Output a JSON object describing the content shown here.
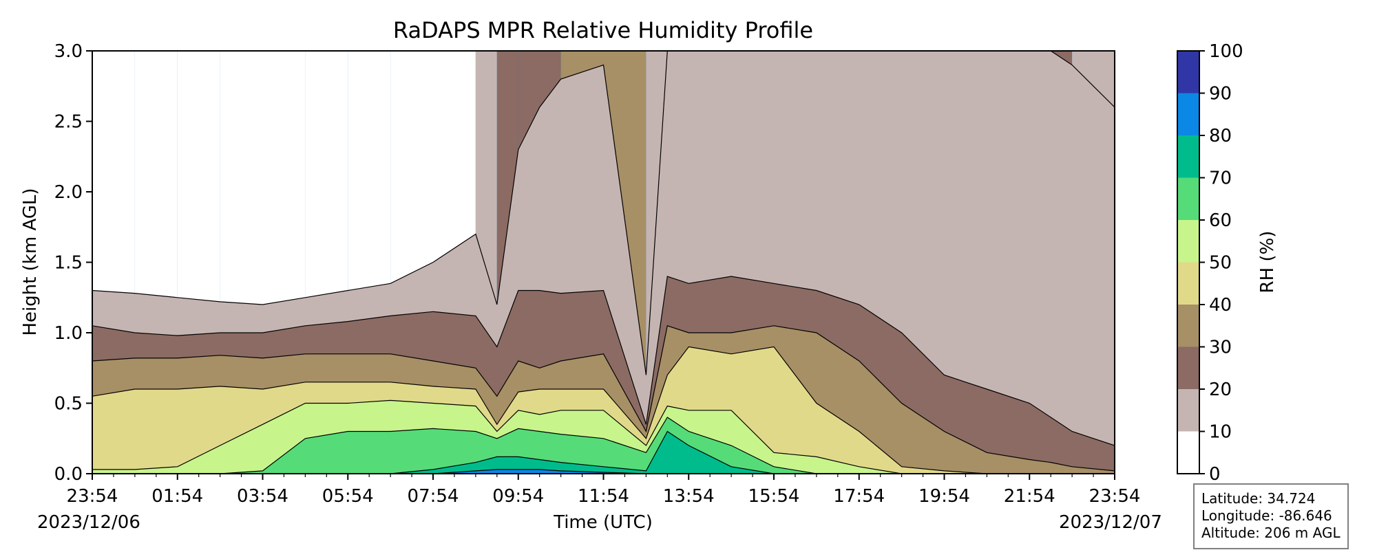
{
  "chart_data": {
    "type": "heatmap",
    "subtype": "filled-contour",
    "title": "RaDAPS MPR Relative Humidity Profile",
    "xlabel": "Time (UTC)",
    "ylabel": "Height (km AGL)",
    "x_ticks": [
      "23:54",
      "01:54",
      "03:54",
      "05:54",
      "07:54",
      "09:54",
      "11:54",
      "13:54",
      "15:54",
      "17:54",
      "19:54",
      "21:54",
      "23:54"
    ],
    "x_range": [
      "2023-12-06T23:54",
      "2023-12-07T23:54"
    ],
    "date_labels": {
      "start": "2023/12/06",
      "end": "2023/12/07"
    },
    "y_ticks": [
      0.0,
      0.5,
      1.0,
      1.5,
      2.0,
      2.5,
      3.0
    ],
    "y_tick_labels": [
      "0.0",
      "0.5",
      "1.0",
      "1.5",
      "2.0",
      "2.5",
      "3.0"
    ],
    "ylim": [
      0,
      3.0
    ],
    "colorbar": {
      "label": "RH (%)",
      "ticks": [
        0,
        10,
        20,
        30,
        40,
        50,
        60,
        70,
        80,
        90,
        100
      ],
      "levels": [
        {
          "min": 0,
          "max": 10,
          "color": "#ffffff"
        },
        {
          "min": 10,
          "max": 20,
          "color": "#c5b5b2"
        },
        {
          "min": 20,
          "max": 30,
          "color": "#8b6b63"
        },
        {
          "min": 30,
          "max": 40,
          "color": "#a78f66"
        },
        {
          "min": 40,
          "max": 50,
          "color": "#e1d98a"
        },
        {
          "min": 50,
          "max": 60,
          "color": "#c8f48c"
        },
        {
          "min": 60,
          "max": 70,
          "color": "#55db78"
        },
        {
          "min": 70,
          "max": 80,
          "color": "#00bc8c"
        },
        {
          "min": 80,
          "max": 90,
          "color": "#0b87e5"
        },
        {
          "min": 90,
          "max": 100,
          "color": "#3136a6"
        }
      ]
    },
    "rh_profile": {
      "description_units": "Height of each RH contour boundary in km AGL at each time (hours since 23:54 UTC 2023/12/06)",
      "hours": [
        0,
        1,
        2,
        3,
        4,
        5,
        6,
        7,
        8,
        9,
        9.5,
        10,
        10.5,
        11,
        12,
        13,
        13.5,
        14,
        15,
        16,
        17,
        18,
        19,
        20,
        21,
        22,
        22.5,
        23,
        24
      ],
      "rh_thresholds": [
        80,
        70,
        60,
        50,
        40,
        30,
        20,
        10
      ],
      "boundaries_km": [
        [
          0,
          0,
          0,
          0,
          0,
          0,
          0,
          0,
          0,
          0.02,
          0.03,
          0.03,
          0.03,
          0.02,
          0.01,
          0,
          0,
          0,
          0,
          0,
          0,
          0,
          0,
          0,
          0,
          0,
          0,
          0,
          0
        ],
        [
          0,
          0,
          0,
          0,
          0,
          0,
          0,
          0,
          0.03,
          0.08,
          0.12,
          0.12,
          0.1,
          0.08,
          0.05,
          0.02,
          0.3,
          0.2,
          0.05,
          0,
          0,
          0,
          0,
          0,
          0,
          0,
          0,
          0,
          0
        ],
        [
          0,
          0,
          0,
          0,
          0.02,
          0.25,
          0.3,
          0.3,
          0.32,
          0.3,
          0.25,
          0.32,
          0.3,
          0.28,
          0.25,
          0.15,
          0.4,
          0.3,
          0.2,
          0.05,
          0,
          0,
          0,
          0,
          0,
          0,
          0,
          0,
          0
        ],
        [
          0.03,
          0.03,
          0.05,
          0.2,
          0.35,
          0.5,
          0.5,
          0.52,
          0.5,
          0.48,
          0.3,
          0.45,
          0.42,
          0.45,
          0.45,
          0.2,
          0.48,
          0.45,
          0.45,
          0.15,
          0.12,
          0.05,
          0,
          0,
          0,
          0,
          0,
          0,
          0
        ],
        [
          0.55,
          0.6,
          0.6,
          0.62,
          0.6,
          0.65,
          0.65,
          0.65,
          0.62,
          0.6,
          0.35,
          0.58,
          0.6,
          0.6,
          0.6,
          0.25,
          0.7,
          0.9,
          0.85,
          0.9,
          0.5,
          0.3,
          0.05,
          0.02,
          0,
          0,
          0,
          0,
          0
        ],
        [
          0.8,
          0.82,
          0.82,
          0.84,
          0.82,
          0.85,
          0.85,
          0.85,
          0.8,
          0.75,
          0.55,
          0.8,
          0.75,
          0.8,
          0.85,
          0.3,
          1.05,
          1.0,
          1.0,
          1.05,
          1.0,
          0.8,
          0.5,
          0.3,
          0.15,
          0.1,
          0.08,
          0.05,
          0.02
        ],
        [
          1.05,
          1.0,
          0.98,
          1.0,
          1.0,
          1.05,
          1.08,
          1.12,
          1.15,
          1.12,
          0.9,
          1.3,
          1.3,
          1.28,
          1.3,
          0.35,
          1.4,
          1.35,
          1.4,
          1.35,
          1.3,
          1.2,
          1.0,
          0.7,
          0.6,
          0.5,
          0.4,
          0.3,
          0.2
        ],
        [
          1.3,
          1.28,
          1.25,
          1.22,
          1.2,
          1.25,
          1.3,
          1.35,
          1.5,
          1.7,
          1.2,
          2.3,
          2.6,
          2.8,
          2.9,
          0.7,
          3.0,
          3.0,
          3.0,
          3.0,
          3.0,
          3.0,
          3.0,
          3.0,
          3.0,
          3.0,
          3.0,
          2.9,
          2.6
        ]
      ],
      "top_band_rh_percent": [
        5,
        5,
        5,
        5,
        5,
        5,
        5,
        5,
        5,
        15,
        25,
        25,
        28,
        30,
        30,
        15,
        25,
        15,
        15,
        15,
        15,
        25,
        25,
        25,
        28,
        30,
        25,
        15,
        15
      ]
    }
  },
  "info_box": {
    "latitude": "Latitude: 34.724",
    "longitude": "Longitude: -86.646",
    "altitude": "Altitude: 206 m AGL"
  }
}
